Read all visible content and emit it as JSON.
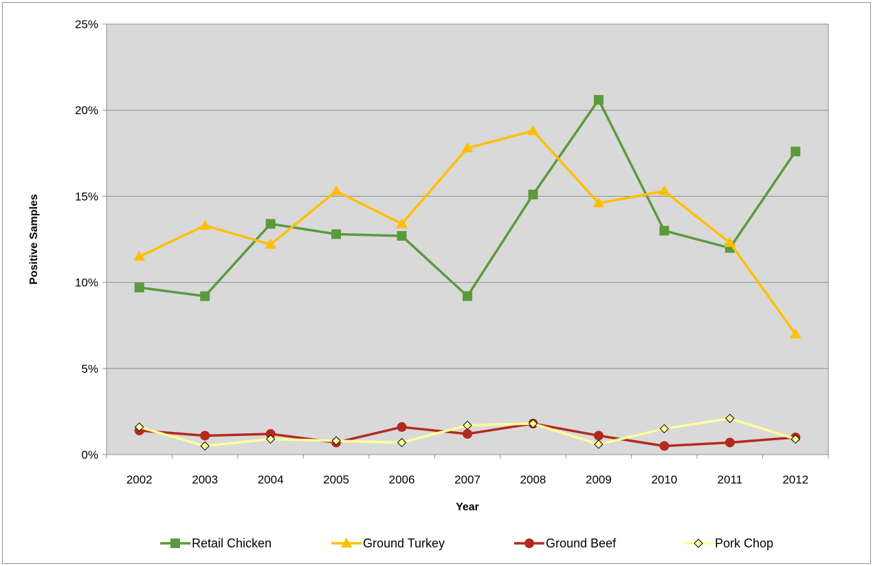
{
  "chart_data": {
    "type": "line",
    "title": "",
    "xlabel": "Year",
    "ylabel": "Positive Samples",
    "categories": [
      "2002",
      "2003",
      "2004",
      "2005",
      "2006",
      "2007",
      "2008",
      "2009",
      "2010",
      "2011",
      "2012"
    ],
    "ylim": [
      0,
      25
    ],
    "yticks": [
      0,
      5,
      10,
      15,
      20,
      25
    ],
    "ytick_labels": [
      "0%",
      "5%",
      "10%",
      "15%",
      "20%",
      "25%"
    ],
    "y_unit": "percent",
    "grid": "horizontal",
    "plot_background": "#d9d9d9",
    "legend_position": "bottom",
    "series": [
      {
        "name": "Retail Chicken",
        "color": "#5a9a3c",
        "marker": "square",
        "values": [
          9.7,
          9.2,
          13.4,
          12.8,
          12.7,
          9.2,
          15.1,
          20.6,
          13.0,
          12.0,
          17.6
        ]
      },
      {
        "name": "Ground Turkey",
        "color": "#ffbf00",
        "marker": "triangle",
        "values": [
          11.5,
          13.3,
          12.2,
          15.3,
          13.4,
          17.8,
          18.8,
          14.6,
          15.3,
          12.3,
          7.0
        ]
      },
      {
        "name": "Ground Beef",
        "color": "#b22a1e",
        "marker": "circle",
        "values": [
          1.4,
          1.1,
          1.2,
          0.7,
          1.6,
          1.2,
          1.8,
          1.1,
          0.5,
          0.7,
          1.0
        ]
      },
      {
        "name": "Pork Chop",
        "color": "#ffff99",
        "marker": "diamond",
        "values": [
          1.6,
          0.5,
          0.9,
          0.8,
          0.7,
          1.7,
          1.8,
          0.6,
          1.5,
          2.1,
          0.9
        ]
      }
    ]
  }
}
